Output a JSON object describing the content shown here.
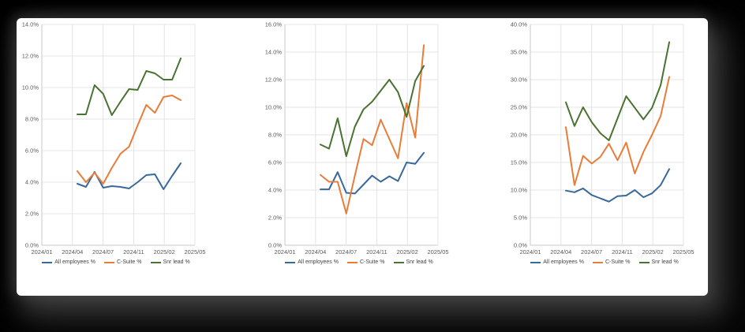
{
  "panel": {
    "background_color": "#000000",
    "card_color": "#ffffff"
  },
  "legend": [
    {
      "label": "All employees %",
      "color": "#38699b"
    },
    {
      "label": "C-Suite %",
      "color": "#e87d3a"
    },
    {
      "label": "Snr lead %",
      "color": "#4a7232"
    }
  ],
  "chart_data": [
    {
      "type": "line",
      "title": "",
      "xlabel": "",
      "ylabel": "",
      "grid": true,
      "legend_position": "bottom",
      "ylim": [
        0,
        14
      ],
      "y_tick_step": 2,
      "y_tick_labels": [
        "14.0%",
        "12.0%",
        "10.0%",
        "8.0%",
        "6.0%",
        "4.0%",
        "2.0%",
        "0.0%"
      ],
      "x_tick_labels": [
        "2024/01",
        "2024/04",
        "2024/07",
        "2024/11",
        "2025/02",
        "2025/05"
      ],
      "series": [
        {
          "name": "All employees %",
          "color": "#38699b",
          "values": [
            3.9,
            3.7,
            4.65,
            3.65,
            3.75,
            3.7,
            3.6,
            4.0,
            4.45,
            4.5,
            3.55,
            4.4,
            5.2
          ]
        },
        {
          "name": "C-Suite %",
          "color": "#e87d3a",
          "values": [
            4.7,
            4.0,
            4.6,
            3.9,
            4.9,
            5.8,
            6.25,
            7.6,
            8.9,
            8.4,
            9.4,
            9.5,
            9.2
          ]
        },
        {
          "name": "Snr lead %",
          "color": "#4a7232",
          "values": [
            8.3,
            8.3,
            10.15,
            9.6,
            8.25,
            9.1,
            9.9,
            9.85,
            11.05,
            10.9,
            10.5,
            10.5,
            11.85
          ]
        }
      ]
    },
    {
      "type": "line",
      "title": "",
      "xlabel": "",
      "ylabel": "",
      "grid": true,
      "legend_position": "bottom",
      "ylim": [
        0,
        16
      ],
      "y_tick_step": 2,
      "y_tick_labels": [
        "16.0%",
        "14.0%",
        "12.0%",
        "10.0%",
        "8.0%",
        "6.0%",
        "4.0%",
        "2.0%",
        "0.0%"
      ],
      "x_tick_labels": [
        "2024/01",
        "2024/04",
        "2024/07",
        "2024/11",
        "2025/02",
        "2025/05"
      ],
      "series": [
        {
          "name": "All employees %",
          "color": "#38699b",
          "values": [
            4.05,
            4.05,
            5.3,
            3.8,
            3.75,
            4.4,
            5.05,
            4.6,
            5.0,
            4.65,
            6.0,
            5.9,
            6.7
          ]
        },
        {
          "name": "C-Suite %",
          "color": "#e87d3a",
          "values": [
            5.1,
            4.6,
            4.6,
            2.3,
            5.05,
            7.7,
            7.25,
            9.1,
            7.7,
            6.3,
            10.3,
            7.8,
            14.5
          ]
        },
        {
          "name": "Snr lead %",
          "color": "#4a7232",
          "values": [
            7.3,
            7.0,
            9.2,
            6.45,
            8.6,
            9.85,
            10.4,
            11.2,
            12.0,
            11.1,
            9.3,
            11.9,
            13.0
          ]
        }
      ]
    },
    {
      "type": "line",
      "title": "",
      "xlabel": "",
      "ylabel": "",
      "grid": true,
      "legend_position": "bottom",
      "ylim": [
        0,
        40
      ],
      "y_tick_step": 5,
      "y_tick_labels": [
        "40.0%",
        "35.0%",
        "30.0%",
        "25.0%",
        "20.0%",
        "15.0%",
        "10.0%",
        "5.0%",
        "0.0%"
      ],
      "x_tick_labels": [
        "2024/01",
        "2024/04",
        "2024/07",
        "2024/11",
        "2025/02",
        "2025/05"
      ],
      "series": [
        {
          "name": "All employees %",
          "color": "#38699b",
          "values": [
            9.9,
            9.6,
            10.3,
            9.1,
            8.5,
            7.9,
            8.9,
            9.0,
            10.0,
            8.7,
            9.4,
            10.9,
            13.8
          ]
        },
        {
          "name": "C-Suite %",
          "color": "#e87d3a",
          "values": [
            21.4,
            10.9,
            16.2,
            14.8,
            16.0,
            18.4,
            15.4,
            18.6,
            13.0,
            16.9,
            20.0,
            23.4,
            30.5
          ]
        },
        {
          "name": "Snr lead %",
          "color": "#4a7232",
          "values": [
            25.9,
            21.6,
            25.0,
            22.3,
            20.3,
            19.0,
            23.0,
            27.0,
            24.9,
            22.8,
            24.9,
            29.0,
            36.8
          ]
        }
      ]
    }
  ]
}
